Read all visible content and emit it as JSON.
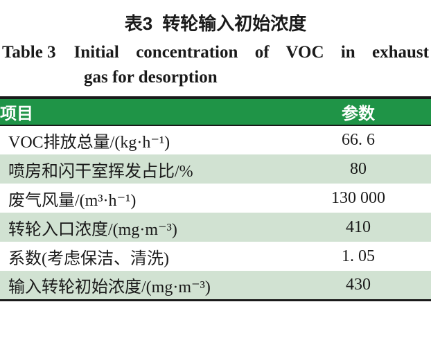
{
  "captions": {
    "zh": {
      "number": "表3",
      "title": "转轮输入初始浓度"
    },
    "en": {
      "number": "Table 3",
      "line1": "Initial concentration of VOC in exhaust",
      "line2": "gas for desorption"
    }
  },
  "table": {
    "columns": [
      {
        "label": "项目"
      },
      {
        "label": "参数"
      }
    ],
    "rows": [
      {
        "label": "VOC排放总量/(kg·h⁻¹)",
        "value": "66. 6"
      },
      {
        "label": "喷房和闪干室挥发占比/%",
        "value": "80"
      },
      {
        "label": "废气风量/(m³·h⁻¹)",
        "value": "130 000"
      },
      {
        "label": "转轮入口浓度/(mg·m⁻³)",
        "value": "410"
      },
      {
        "label": "系数(考虑保洁、清洗)",
        "value": "1. 05"
      },
      {
        "label": "输入转轮初始浓度/(mg·m⁻³)",
        "value": "430"
      }
    ],
    "colors": {
      "header_bg": "#1f9447",
      "header_text": "#ffffff",
      "row_alt_bg": "#d1e2d2",
      "border": "#1a1a1a",
      "text": "#1a1a1a"
    }
  }
}
